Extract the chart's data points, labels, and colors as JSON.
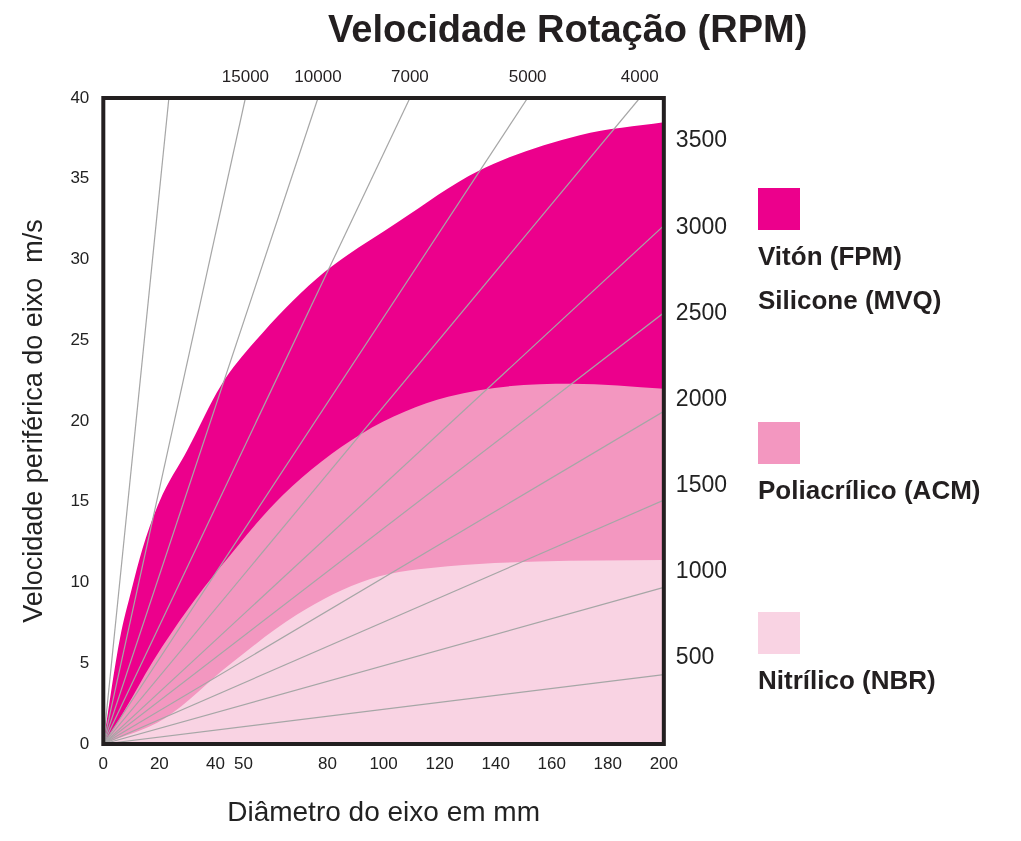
{
  "chart_data": {
    "type": "area",
    "title": "Velocidade Rotação (RPM)",
    "xlabel": "Diâmetro do eixo em mm",
    "ylabel": "Velocidade periférica do eixo  m/s",
    "xlim": [
      0,
      200
    ],
    "xticks": [
      0,
      20,
      40,
      50,
      80,
      100,
      120,
      140,
      160,
      180,
      200
    ],
    "ylim": [
      0,
      40
    ],
    "yticks": [
      0,
      5,
      10,
      15,
      20,
      25,
      30,
      35,
      40
    ],
    "y2lim": [
      0,
      3750
    ],
    "y2ticks": [
      500,
      1000,
      1500,
      2000,
      2500,
      3000,
      3500
    ],
    "grid": false,
    "legend": "right",
    "marker": "none",
    "series": [
      {
        "name": "Vitón (FPM)\nSilicone (MVQ)",
        "color": "#ec008c",
        "x": [
          0,
          3,
          6,
          10,
          14,
          20,
          30,
          42,
          54,
          76,
          105,
          134,
          170,
          200
        ],
        "values": [
          0,
          3.5,
          6.6,
          9.5,
          12.1,
          15,
          18.2,
          22.2,
          24.9,
          28.8,
          32.3,
          35.5,
          37.7,
          38.5
        ]
      },
      {
        "name": "Poliacrílico (ACM)",
        "color": "#f397c0",
        "x": [
          0,
          6,
          18,
          30,
          42,
          64,
          92,
          123,
          167,
          200
        ],
        "values": [
          0,
          1.6,
          5.2,
          8.3,
          11,
          15.4,
          19.2,
          21.5,
          22.3,
          22
        ]
      },
      {
        "name": "Nitrílico (NBR)",
        "color": "#f9d3e3",
        "x": [
          0,
          22,
          45,
          69,
          95,
          123,
          155,
          200
        ],
        "values": [
          0,
          1.6,
          4.9,
          8,
          10.2,
          11,
          11.3,
          11.4
        ]
      },
      {
        "type": "line",
        "color": "#a6a6a6",
        "x": [
          0,
          23.4
        ],
        "values": [
          0,
          40
        ]
      },
      {
        "type": "line",
        "name": "15000",
        "color": "#a6a6a6",
        "x": [
          0,
          50.7
        ],
        "values": [
          0,
          40
        ]
      },
      {
        "type": "line",
        "name": "10000",
        "color": "#a6a6a6",
        "x": [
          0,
          76.6
        ],
        "values": [
          0,
          40
        ]
      },
      {
        "type": "line",
        "name": "7000",
        "color": "#a6a6a6",
        "x": [
          0,
          109.4
        ],
        "values": [
          0,
          40
        ]
      },
      {
        "type": "line",
        "name": "5000",
        "color": "#a6a6a6",
        "x": [
          0,
          151.4
        ],
        "values": [
          0,
          40
        ]
      },
      {
        "type": "line",
        "name": "4000",
        "color": "#a6a6a6",
        "x": [
          0,
          191.4
        ],
        "values": [
          0,
          40
        ]
      },
      {
        "type": "line",
        "color": "#a6a6a6",
        "x": [
          0,
          200
        ],
        "values": [
          0,
          32.1
        ]
      },
      {
        "type": "line",
        "color": "#a6a6a6",
        "x": [
          0,
          200
        ],
        "values": [
          0,
          26.7
        ]
      },
      {
        "type": "line",
        "color": "#a6a6a6",
        "x": [
          0,
          200
        ],
        "values": [
          0,
          20.6
        ]
      },
      {
        "type": "line",
        "color": "#a6a6a6",
        "x": [
          0,
          200
        ],
        "values": [
          0,
          15.1
        ]
      },
      {
        "type": "line",
        "color": "#a6a6a6",
        "x": [
          0,
          200
        ],
        "values": [
          0,
          9.7
        ]
      },
      {
        "type": "line",
        "color": "#a6a6a6",
        "x": [
          0,
          200
        ],
        "values": [
          0,
          4.3
        ]
      }
    ]
  }
}
